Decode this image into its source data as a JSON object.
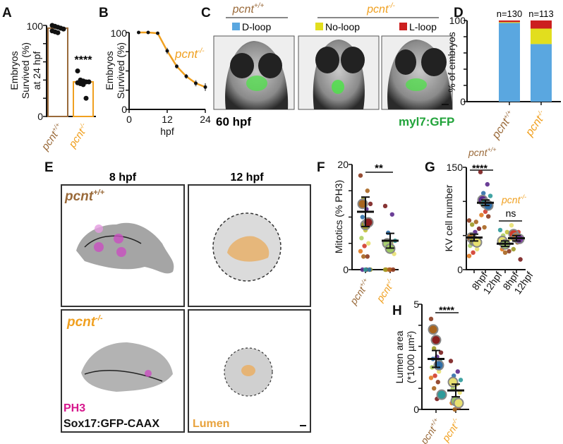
{
  "colors": {
    "wt": "#9a6a3a",
    "mut": "#f0a020",
    "dloop": "#5aa7e0",
    "noloop": "#e2de1e",
    "lloop": "#cc1f1f",
    "gfp": "#21a33a",
    "ph3": "#d6168c",
    "lumen": "#e8a23c"
  },
  "genotypes": {
    "wt": {
      "base": "pcnt",
      "sup": "+/+"
    },
    "mut": {
      "base": "pcnt",
      "sup": "-/-"
    }
  },
  "panels": {
    "A": {
      "label": "A",
      "ylabel": [
        "Embryos",
        "Survived (%)",
        "at 24 hpf"
      ],
      "ticks": [
        "0",
        "100"
      ],
      "sig": "****"
    },
    "B": {
      "label": "B",
      "ylabel": [
        "Embryos",
        "Survived (%)"
      ],
      "ticks_y": [
        "0",
        "100"
      ],
      "ticks_x": [
        "0",
        "12",
        "24"
      ],
      "xlabel": "hpf"
    },
    "C": {
      "label": "C",
      "legend": [
        "D-loop",
        "No-loop",
        "L-loop"
      ],
      "stage": "60 hpf",
      "reporter": "myl7:GFP"
    },
    "D": {
      "label": "D",
      "ylabel": "% of embryos",
      "ticks": [
        "0",
        "100"
      ],
      "n": [
        "n=130",
        "n=113"
      ]
    },
    "E": {
      "label": "E",
      "columns": [
        "8 hpf",
        "12 hpf"
      ],
      "stain1": "PH3",
      "stain2": "Sox17:GFP-CAAX",
      "stain3": "Lumen"
    },
    "F": {
      "label": "F",
      "ylabel": "Mitotics (% PH3)",
      "ticks": [
        "0",
        "20"
      ],
      "sig": "**"
    },
    "G": {
      "label": "G",
      "ylabel": "KV cell number",
      "ticks": [
        "0",
        "150"
      ],
      "sig": "****",
      "sig2": "ns",
      "xlabels": [
        "8hpf",
        "12hpf",
        "8hpf",
        "12hpf"
      ]
    },
    "H": {
      "label": "H",
      "ylabel": [
        "Lumen area",
        "(*1000 µm²)"
      ],
      "ticks": [
        "0",
        "5"
      ],
      "sig": "****"
    }
  },
  "chart_data": [
    {
      "panel": "A",
      "type": "bar",
      "categories": [
        "pcnt+/+",
        "pcnt-/-"
      ],
      "values": [
        97,
        38
      ],
      "points": [
        [
          100,
          99,
          98,
          97,
          96,
          94,
          93,
          92
        ],
        [
          50,
          40,
          39,
          38,
          38,
          37,
          36,
          35,
          20
        ]
      ],
      "ylabel": "Embryos Survived (%) at 24 hpf",
      "ylim": [
        0,
        100
      ]
    },
    {
      "panel": "B",
      "type": "line",
      "series": [
        {
          "name": "pcnt-/-",
          "x": [
            3,
            6,
            9,
            12,
            15,
            18,
            21,
            24
          ],
          "y": [
            100,
            100,
            99,
            76,
            56,
            43,
            34,
            29
          ],
          "err": [
            0,
            0,
            0,
            4,
            3,
            3,
            4,
            5
          ]
        }
      ],
      "xlabel": "hpf",
      "ylabel": "Embryos Survived (%)",
      "xlim": [
        0,
        24
      ],
      "ylim": [
        0,
        100
      ]
    },
    {
      "panel": "D",
      "type": "bar",
      "stacked": true,
      "categories": [
        "pcnt+/+",
        "pcnt-/-"
      ],
      "series": [
        {
          "name": "D-loop",
          "values": [
            97,
            71
          ]
        },
        {
          "name": "No-loop",
          "values": [
            1,
            19
          ]
        },
        {
          "name": "L-loop",
          "values": [
            2,
            10
          ]
        }
      ],
      "ylabel": "% of embryos",
      "ylim": [
        0,
        100
      ]
    },
    {
      "panel": "F",
      "type": "scatter",
      "categories": [
        "pcnt+/+",
        "pcnt-/-"
      ],
      "means": [
        11,
        5.5
      ],
      "sem": [
        2.8,
        1.4
      ],
      "points": [
        [
          17.9,
          15,
          13.5,
          12.5,
          11.5,
          10,
          9.3,
          7.5,
          6,
          5,
          4.5,
          3.5,
          2.5,
          2.5,
          0,
          0,
          0,
          0,
          0
        ],
        [
          12.1,
          10.5,
          7,
          5.5,
          5,
          4.5,
          3,
          0,
          0,
          0,
          0,
          0
        ]
      ],
      "replicates": [
        [
          12.5,
          8.5,
          9
        ],
        [
          5,
          4
        ]
      ],
      "ylabel": "Mitotics (% PH3)",
      "ylim": [
        0,
        20
      ]
    },
    {
      "panel": "G",
      "type": "scatter",
      "categories": [
        "8hpf pcnt+/+",
        "12hpf pcnt+/+",
        "8hpf pcnt-/-",
        "12hpf pcnt-/-"
      ],
      "means": [
        47,
        98,
        38,
        46
      ],
      "sem": [
        5,
        4,
        4,
        4
      ],
      "points": [
        [
          72,
          70,
          66,
          60,
          55,
          50,
          45,
          40,
          35,
          30,
          25,
          20
        ],
        [
          143,
          125,
          112,
          108,
          101,
          95,
          90,
          85,
          80,
          78,
          62
        ],
        [
          58,
          55,
          50,
          45,
          40,
          30,
          27,
          25
        ],
        [
          65,
          55,
          50,
          45,
          40,
          30,
          15
        ]
      ],
      "replicates": [
        [
          47,
          42,
          40
        ],
        [
          102,
          97,
          94
        ],
        [
          42,
          37
        ],
        [
          52,
          47,
          45
        ]
      ],
      "ylabel": "KV cell number",
      "ylim": [
        0,
        150
      ]
    },
    {
      "panel": "H",
      "type": "scatter",
      "categories": [
        "pcnt+/+",
        "pcnt-/-"
      ],
      "means": [
        2.4,
        0.9
      ],
      "sem": [
        0.4,
        0.3
      ],
      "points": [
        [
          4.3,
          3.2,
          2.9,
          2.7,
          2.5,
          2.4,
          2.3,
          2.1,
          2.0,
          1.8,
          1.6,
          1.5,
          1.3,
          1.0,
          0.6,
          0.5
        ],
        [
          2.3,
          1.8,
          1.6,
          1.4,
          1.2,
          1.0,
          0.8,
          0.5,
          0.3,
          0.1,
          0
        ]
      ],
      "replicates": [
        [
          3.8,
          3.3,
          2.1,
          0.7
        ],
        [
          1.3,
          0.4,
          0.3
        ]
      ],
      "ylabel": "Lumen area (*1000 µm²)",
      "ylim": [
        0,
        5
      ]
    }
  ]
}
